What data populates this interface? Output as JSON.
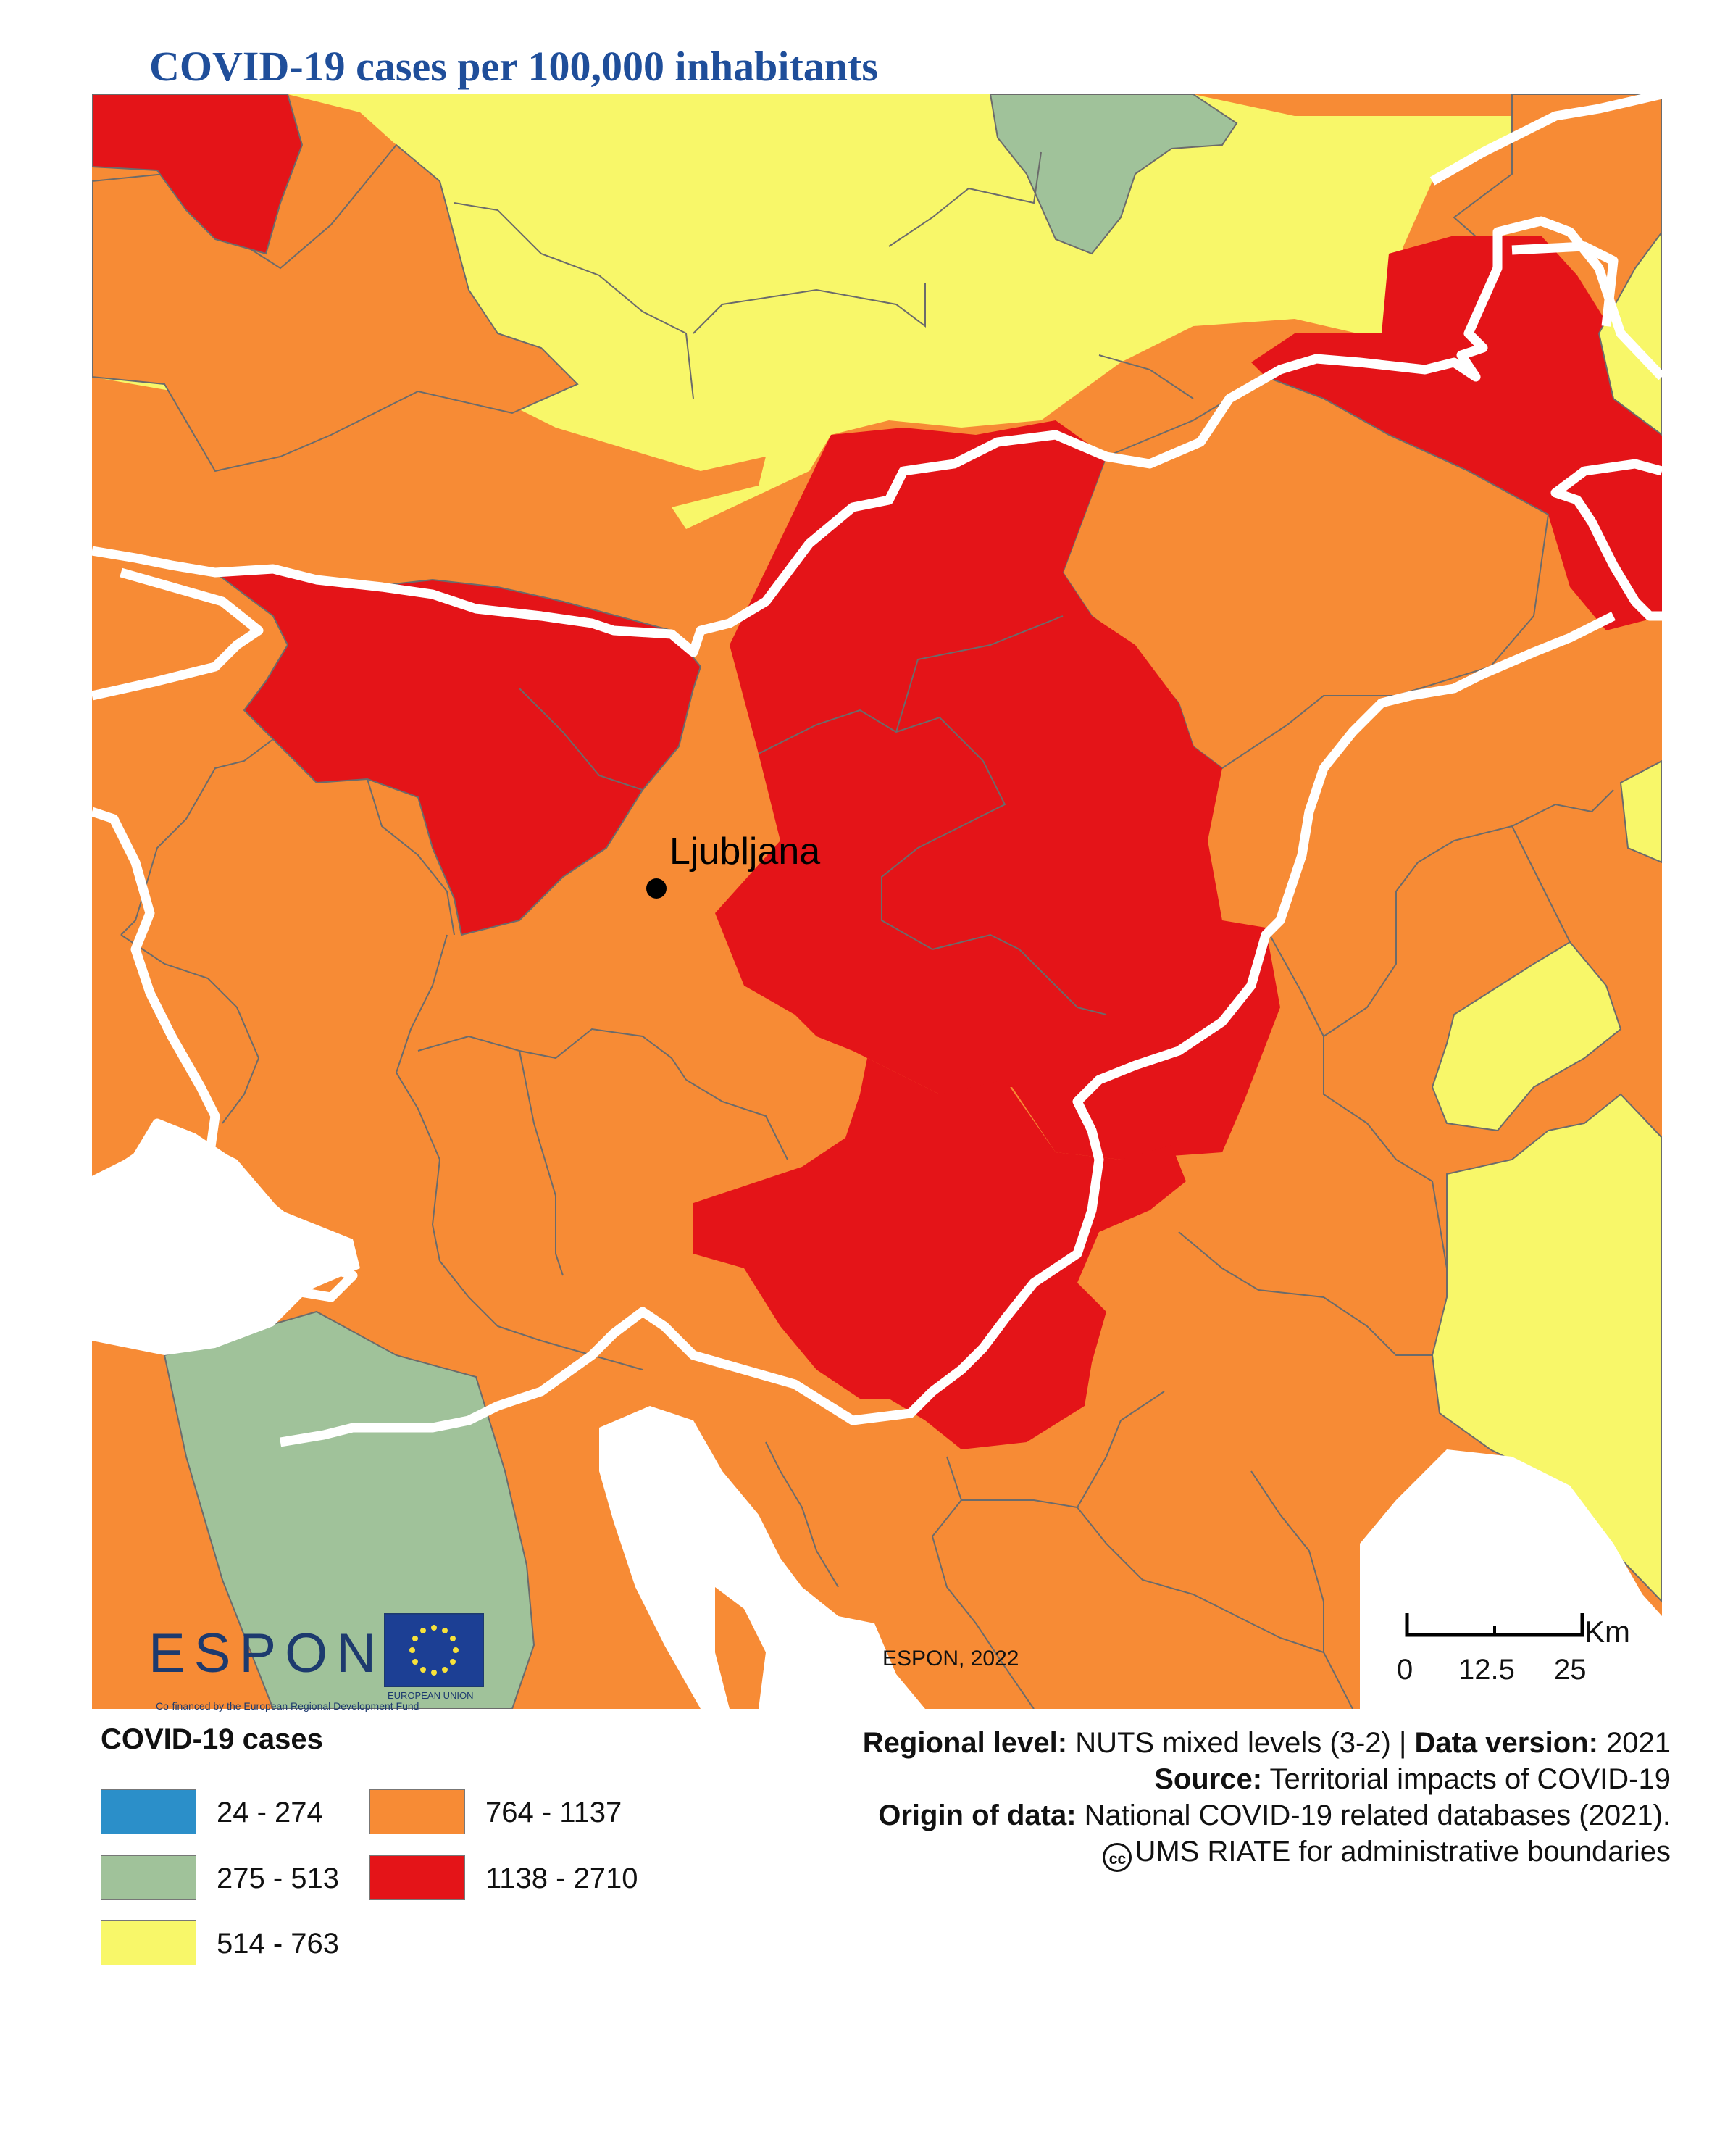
{
  "title": "COVID-19 cases per 100,000 inhabitants",
  "map": {
    "city": "Ljubljana",
    "credit": "ESPON, 2022",
    "scale": {
      "unit": "Km",
      "ticks": [
        "0",
        "12.5",
        "25"
      ]
    },
    "colors": {
      "class1": "#2b8fc9",
      "class2": "#a0c29a",
      "class3": "#f8f769",
      "class4": "#f78b35",
      "class5": "#e41418",
      "border": "#ffffff",
      "inner_border": "#6b6b6b"
    }
  },
  "logos": {
    "espon": "ESPON",
    "eu": "EUROPEAN UNION",
    "cofinanced": "Co-financed by the European Regional Development Fund"
  },
  "legend": {
    "title": "COVID-19 cases",
    "items": [
      {
        "label": "24 - 274",
        "color": "#2b8fc9"
      },
      {
        "label": "275 - 513",
        "color": "#a0c29a"
      },
      {
        "label": "514 - 763",
        "color": "#f8f769"
      },
      {
        "label": "764 - 1137",
        "color": "#f78b35"
      },
      {
        "label": "1138 - 2710",
        "color": "#e41418"
      }
    ]
  },
  "meta": {
    "line1_k1": "Regional level:",
    "line1_v1": " NUTS mixed levels (3-2) | ",
    "line1_k2": "Data version:",
    "line1_v2": " 2021",
    "line2_k": "Source:",
    "line2_v": " Territorial impacts of COVID-19",
    "line3_k": "Origin of data:",
    "line3_v": " National COVID-19 related databases (2021).",
    "line4_cc": "cc",
    "line4_v": "UMS RIATE for administrative boundaries"
  }
}
